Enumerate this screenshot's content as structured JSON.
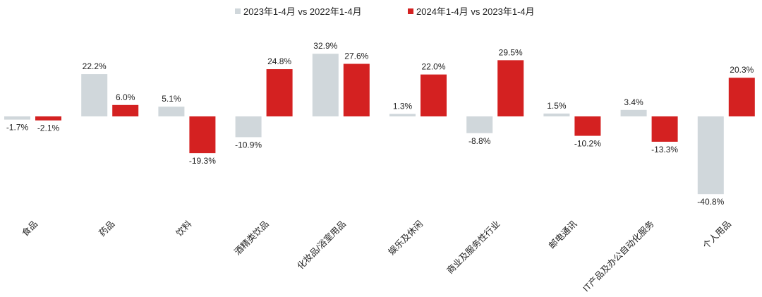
{
  "chart_data": {
    "type": "bar",
    "title": "",
    "xlabel": "",
    "ylabel": "",
    "ylim": [
      -45,
      35
    ],
    "grid": false,
    "legend_position": "top-center",
    "categories": [
      "食品",
      "药品",
      "饮料",
      "酒精类饮品",
      "化妆品/浴室用品",
      "娱乐及休闲",
      "商业及服务性行业",
      "邮电通讯",
      "IT产品及办公自动化服务",
      "个人用品"
    ],
    "series": [
      {
        "name": "2023年1-4月 vs 2022年1-4月",
        "color": "#d0d7db",
        "values": [
          -1.7,
          22.2,
          5.1,
          -10.9,
          32.9,
          1.3,
          -8.8,
          1.5,
          3.4,
          -40.8
        ],
        "labels": [
          "-1.7%",
          "22.2%",
          "5.1%",
          "-10.9%",
          "32.9%",
          "1.3%",
          "-8.8%",
          "1.5%",
          "3.4%",
          "-40.8%"
        ]
      },
      {
        "name": "2024年1-4月 vs 2023年1-4月",
        "color": "#d42121",
        "values": [
          -2.1,
          6.0,
          -19.3,
          24.8,
          27.6,
          22.0,
          29.5,
          -10.2,
          -13.3,
          20.3
        ],
        "labels": [
          "-2.1%",
          "6.0%",
          "-19.3%",
          "24.8%",
          "27.6%",
          "22.0%",
          "29.5%",
          "-10.2%",
          "-13.3%",
          "20.3%"
        ]
      }
    ]
  }
}
